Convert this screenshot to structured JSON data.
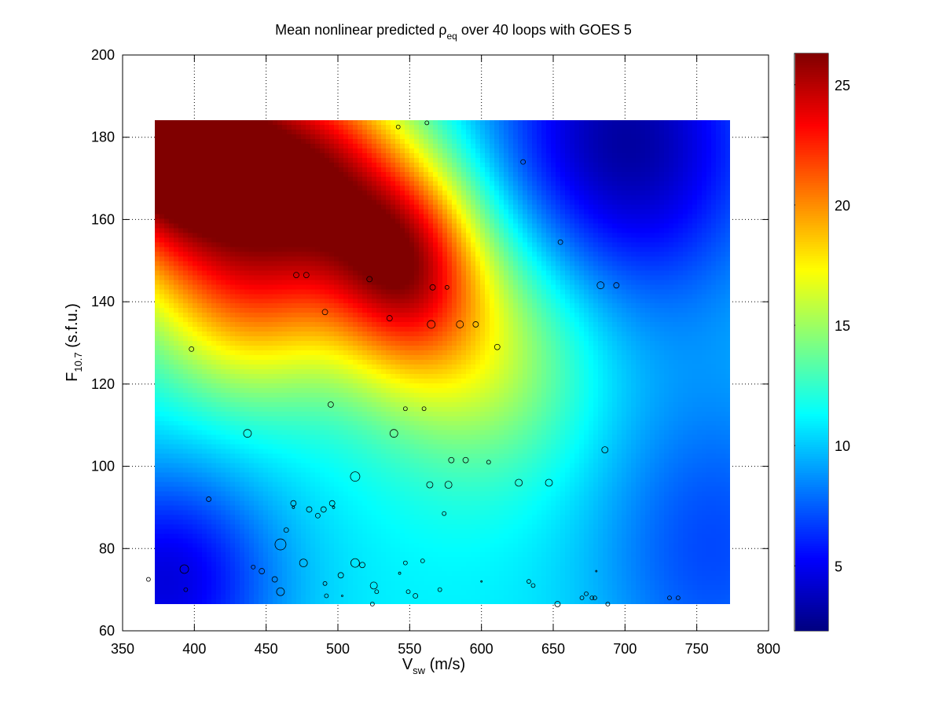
{
  "chart_data": {
    "type": "heatmap",
    "title": "Mean nonlinear predicted ρ",
    "title_sub": "eq",
    "title_rest": " over 40 loops with GOES 5",
    "xlabel_main": "V",
    "xlabel_sub": "sw",
    "xlabel_rest": " (m/s)",
    "ylabel_main": "F",
    "ylabel_sub": "10.7",
    "ylabel_rest": " (s.f.u.)",
    "xlim": [
      350,
      800
    ],
    "ylim": [
      60,
      200
    ],
    "x_ticks": [
      350,
      400,
      450,
      500,
      550,
      600,
      650,
      700,
      750,
      800
    ],
    "y_ticks": [
      60,
      80,
      100,
      120,
      140,
      160,
      180,
      200
    ],
    "x_tick_labels": [
      "350",
      "400",
      "450",
      "500",
      "550",
      "600",
      "650",
      "700",
      "750",
      "800"
    ],
    "y_tick_labels": [
      "60",
      "80",
      "100",
      "120",
      "140",
      "160",
      "180",
      "200"
    ],
    "grid": true,
    "colormap": "jet",
    "colorbar": {
      "range": [
        2.3,
        26.3
      ],
      "ticks": [
        5,
        10,
        15,
        20,
        25
      ],
      "tick_labels": [
        "5",
        "10",
        "15",
        "20",
        "25"
      ]
    },
    "surface_extent": {
      "x": [
        372,
        773
      ],
      "y": [
        66.5,
        184
      ]
    },
    "surface_features": [
      {
        "x": 372,
        "y": 184,
        "value": 26.3,
        "sx": 45,
        "sy": 20
      },
      {
        "x": 430,
        "y": 170,
        "value": 21,
        "sx": 60,
        "sy": 25
      },
      {
        "x": 545,
        "y": 150,
        "value": 22.5,
        "sx": 38,
        "sy": 18
      },
      {
        "x": 490,
        "y": 172,
        "value": 18,
        "sx": 40,
        "sy": 18
      },
      {
        "x": 600,
        "y": 130,
        "value": 16.5,
        "sx": 55,
        "sy": 22
      },
      {
        "x": 440,
        "y": 140,
        "value": 16,
        "sx": 45,
        "sy": 18
      },
      {
        "x": 700,
        "y": 178,
        "value": 3,
        "sx": 70,
        "sy": 28
      },
      {
        "x": 380,
        "y": 72,
        "value": 4.5,
        "sx": 55,
        "sy": 20
      },
      {
        "x": 760,
        "y": 80,
        "value": 7,
        "sx": 60,
        "sy": 30
      }
    ],
    "surface_base": 11,
    "points": [
      {
        "x": 368,
        "y": 72.5,
        "r": 2.5
      },
      {
        "x": 393,
        "y": 75,
        "r": 5.5
      },
      {
        "x": 394,
        "y": 70,
        "r": 2.5
      },
      {
        "x": 398,
        "y": 128.5,
        "r": 3
      },
      {
        "x": 410,
        "y": 92,
        "r": 3
      },
      {
        "x": 437,
        "y": 108,
        "r": 5
      },
      {
        "x": 441,
        "y": 75.5,
        "r": 2.5
      },
      {
        "x": 447,
        "y": 74.5,
        "r": 3.5
      },
      {
        "x": 456,
        "y": 72.5,
        "r": 3.5
      },
      {
        "x": 460,
        "y": 81,
        "r": 7
      },
      {
        "x": 460,
        "y": 69.5,
        "r": 5
      },
      {
        "x": 464,
        "y": 84.5,
        "r": 3
      },
      {
        "x": 469,
        "y": 91,
        "r": 3.5
      },
      {
        "x": 469,
        "y": 90,
        "r": 1.5
      },
      {
        "x": 471,
        "y": 146.5,
        "r": 3.5
      },
      {
        "x": 476,
        "y": 76.5,
        "r": 5
      },
      {
        "x": 478,
        "y": 146.5,
        "r": 3.5
      },
      {
        "x": 480,
        "y": 89.5,
        "r": 3.5
      },
      {
        "x": 486,
        "y": 88,
        "r": 3
      },
      {
        "x": 490,
        "y": 89.5,
        "r": 3.5
      },
      {
        "x": 491,
        "y": 137.5,
        "r": 3.5
      },
      {
        "x": 491,
        "y": 71.5,
        "r": 2.5
      },
      {
        "x": 492,
        "y": 68.5,
        "r": 2.5
      },
      {
        "x": 495,
        "y": 115,
        "r": 3.5
      },
      {
        "x": 496,
        "y": 91,
        "r": 3.5
      },
      {
        "x": 497,
        "y": 90,
        "r": 1.5
      },
      {
        "x": 502,
        "y": 73.5,
        "r": 3.5
      },
      {
        "x": 503,
        "y": 68.5,
        "r": 1
      },
      {
        "x": 512,
        "y": 97.5,
        "r": 6
      },
      {
        "x": 512,
        "y": 76.5,
        "r": 5.5
      },
      {
        "x": 517,
        "y": 76,
        "r": 3.5
      },
      {
        "x": 522,
        "y": 145.5,
        "r": 3.5
      },
      {
        "x": 524,
        "y": 66.5,
        "r": 2.5
      },
      {
        "x": 525,
        "y": 71,
        "r": 4.5
      },
      {
        "x": 527,
        "y": 69.5,
        "r": 2.5
      },
      {
        "x": 536,
        "y": 136,
        "r": 3.5
      },
      {
        "x": 539,
        "y": 108,
        "r": 5
      },
      {
        "x": 542,
        "y": 182.5,
        "r": 2.5
      },
      {
        "x": 543,
        "y": 74,
        "r": 1.5
      },
      {
        "x": 547,
        "y": 114,
        "r": 2.5
      },
      {
        "x": 547,
        "y": 76.5,
        "r": 2.5
      },
      {
        "x": 549,
        "y": 69.5,
        "r": 2.5
      },
      {
        "x": 554,
        "y": 68.5,
        "r": 3
      },
      {
        "x": 559,
        "y": 77,
        "r": 2.5
      },
      {
        "x": 560,
        "y": 114,
        "r": 2.5
      },
      {
        "x": 562,
        "y": 183.5,
        "r": 2.5
      },
      {
        "x": 564,
        "y": 95.5,
        "r": 4
      },
      {
        "x": 565,
        "y": 134.5,
        "r": 5
      },
      {
        "x": 566,
        "y": 143.5,
        "r": 3.5
      },
      {
        "x": 571,
        "y": 70,
        "r": 2.5
      },
      {
        "x": 574,
        "y": 88.5,
        "r": 2.5
      },
      {
        "x": 576,
        "y": 143.5,
        "r": 2.5
      },
      {
        "x": 577,
        "y": 95.5,
        "r": 4.5
      },
      {
        "x": 579,
        "y": 101.5,
        "r": 3.5
      },
      {
        "x": 585,
        "y": 134.5,
        "r": 4.5
      },
      {
        "x": 589,
        "y": 101.5,
        "r": 3.5
      },
      {
        "x": 596,
        "y": 134.5,
        "r": 3.5
      },
      {
        "x": 600,
        "y": 72,
        "r": 1
      },
      {
        "x": 605,
        "y": 101,
        "r": 2.5
      },
      {
        "x": 611,
        "y": 129,
        "r": 3.5
      },
      {
        "x": 626,
        "y": 96,
        "r": 4.5
      },
      {
        "x": 629,
        "y": 174,
        "r": 3
      },
      {
        "x": 633,
        "y": 72,
        "r": 2.5
      },
      {
        "x": 636,
        "y": 71,
        "r": 2.5
      },
      {
        "x": 647,
        "y": 96,
        "r": 4.5
      },
      {
        "x": 653,
        "y": 66.5,
        "r": 3.5
      },
      {
        "x": 655,
        "y": 154.5,
        "r": 3
      },
      {
        "x": 670,
        "y": 68,
        "r": 2.5
      },
      {
        "x": 673,
        "y": 69,
        "r": 2.5
      },
      {
        "x": 677,
        "y": 68,
        "r": 2.5
      },
      {
        "x": 679,
        "y": 68,
        "r": 2.5
      },
      {
        "x": 680,
        "y": 74.5,
        "r": 1
      },
      {
        "x": 683,
        "y": 144,
        "r": 4.5
      },
      {
        "x": 686,
        "y": 104,
        "r": 4
      },
      {
        "x": 688,
        "y": 66.5,
        "r": 2.5
      },
      {
        "x": 694,
        "y": 144,
        "r": 3.5
      },
      {
        "x": 731,
        "y": 68,
        "r": 2.5
      },
      {
        "x": 737,
        "y": 68,
        "r": 2.5
      }
    ]
  }
}
